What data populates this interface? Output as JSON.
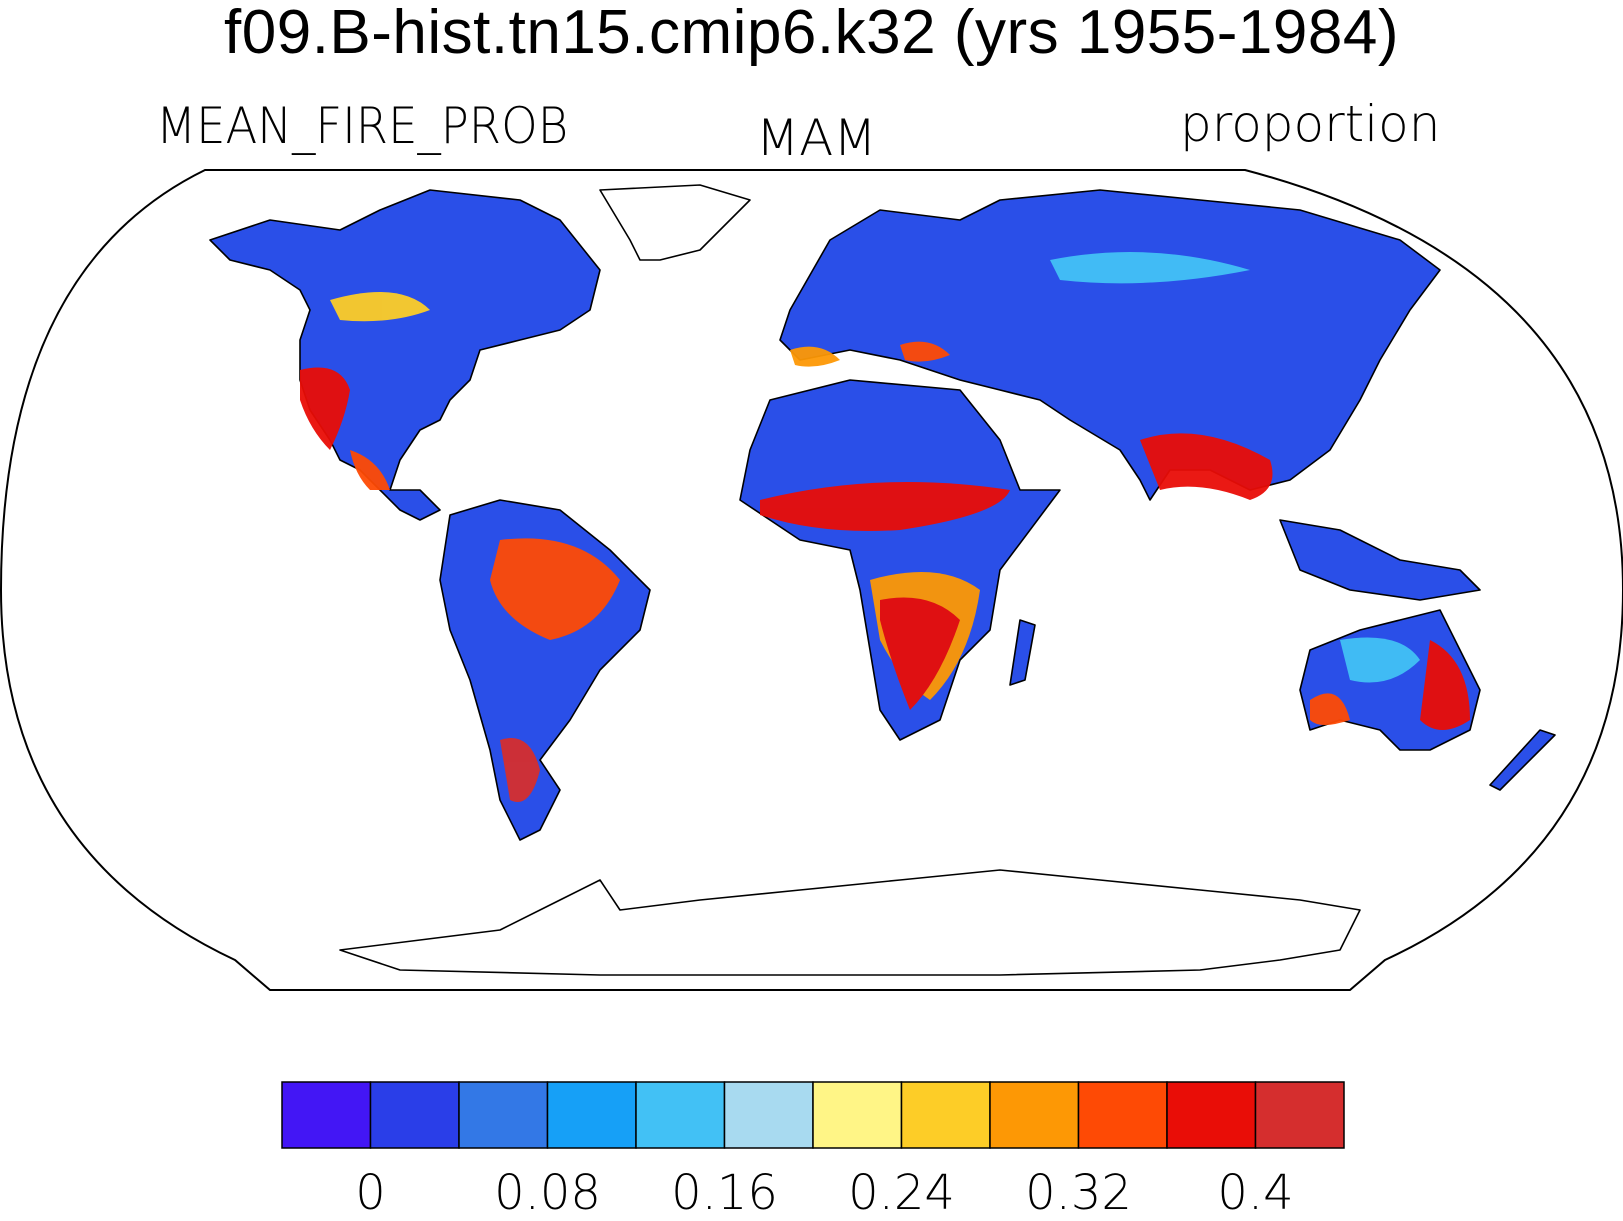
{
  "title": "f09.B-hist.tn15.cmip6.k32 (yrs 1955-1984)",
  "subtitle_left": "MEAN_FIRE_PROB",
  "subtitle_center": "MAM",
  "subtitle_right": "proportion",
  "colorbar": {
    "colors": [
      "#4316f5",
      "#2a3ee8",
      "#3378e6",
      "#16a0f7",
      "#42c1f5",
      "#a8daf0",
      "#fff586",
      "#fdcd27",
      "#fd9805",
      "#fe4a05",
      "#e90d07",
      "#d52e2e"
    ],
    "tick_labels": [
      "0",
      "0.08",
      "0.16",
      "0.24",
      "0.32",
      "0.4"
    ]
  },
  "map": {
    "projection": "Robinson",
    "land_background": "#2a4fe8"
  }
}
